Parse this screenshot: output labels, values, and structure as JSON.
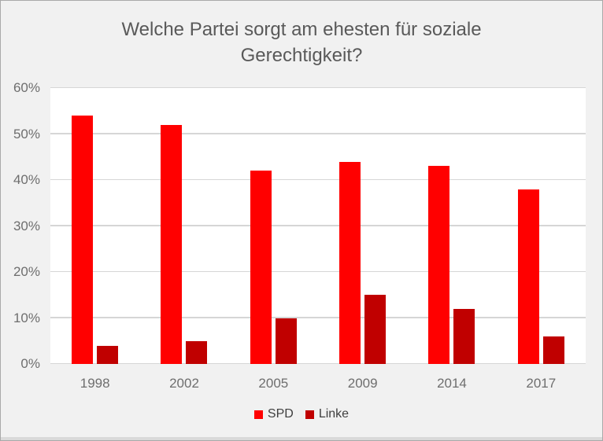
{
  "chart_data": {
    "type": "bar",
    "title": "Welche Partei sorgt am ehesten für soziale Gerechtigkeit?",
    "categories": [
      "1998",
      "2002",
      "2005",
      "2009",
      "2014",
      "2017"
    ],
    "series": [
      {
        "name": "SPD",
        "color": "#FF0000",
        "values": [
          54,
          52,
          42,
          44,
          43,
          38
        ]
      },
      {
        "name": "Linke",
        "color": "#C00000",
        "values": [
          4,
          5,
          10,
          15,
          12,
          6
        ]
      }
    ],
    "xlabel": "",
    "ylabel": "",
    "ylim": [
      0,
      60
    ],
    "ytick_step": 10,
    "ytick_labels": [
      "0%",
      "10%",
      "20%",
      "30%",
      "40%",
      "50%",
      "60%"
    ],
    "grid": "horizontal",
    "legend_position": "bottom"
  },
  "colors": {
    "background": "#F1F1F1",
    "plot_background": "#FFFFFF",
    "gridline": "#D6D6D6",
    "border": "#A9A9A9",
    "title_text": "#595959",
    "axis_text": "#6E6E6E",
    "legend_text": "#3F3F3F",
    "spd_red": "#FF0000",
    "linke_dark_red": "#C00000"
  }
}
